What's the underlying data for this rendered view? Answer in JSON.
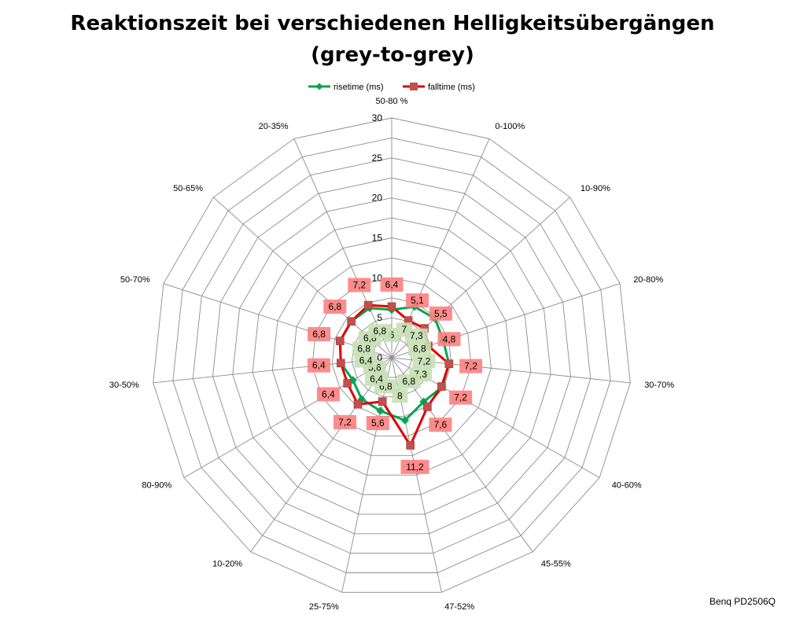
{
  "chart_data": {
    "type": "radar",
    "title_line1": "Reaktionszeit bei verschiedenen Helligkeitsübergängen",
    "title_line2": "(grey-to-grey)",
    "source_label": "Benq PD2506Q",
    "categories": [
      "50-80 %",
      "0-100%",
      "10-90%",
      "20-80%",
      "30-70%",
      "40-60%",
      "45-55%",
      "47-52%",
      "25-75%",
      "10-20%",
      "80-90%",
      "30-50%",
      "50-70%",
      "50-65%",
      "20-35%"
    ],
    "radial_ticks": [
      "0",
      "5",
      "10",
      "15",
      "20",
      "25",
      "30"
    ],
    "rmax": 30,
    "grid_rings": 12,
    "legend_position": "top",
    "series": [
      {
        "name": "risetime (ms)",
        "color": "#00a650",
        "marker": "diamond",
        "label_bg": "#c6e0b4",
        "values": [
          6.0,
          7.0,
          7.3,
          6.8,
          7.2,
          7.3,
          6.8,
          8.0,
          6.8,
          6.4,
          5.6,
          6.4,
          6.8,
          6.8,
          6.8
        ],
        "labels": [
          "6",
          "7",
          "7,3",
          "6,8",
          "7,2",
          "7,3",
          "6,8",
          "8",
          "6,8",
          "6,4",
          "5,6",
          "6,4",
          "6,8",
          "6,8",
          "6,8"
        ]
      },
      {
        "name": "falltime (ms)",
        "color": "#e00000",
        "marker": "square",
        "label_bg": "#ff7f7f",
        "values": [
          6.4,
          5.1,
          5.5,
          4.8,
          7.2,
          7.2,
          7.6,
          11.2,
          5.6,
          7.2,
          6.4,
          6.4,
          6.8,
          6.8,
          7.2
        ],
        "labels": [
          "6,4",
          "5,1",
          "5,5",
          "4,8",
          "7,2",
          "7,2",
          "7,6",
          "11,2",
          "5,6",
          "7,2",
          "6,4",
          "6,4",
          "6,8",
          "6,8",
          "7,2"
        ]
      }
    ]
  }
}
